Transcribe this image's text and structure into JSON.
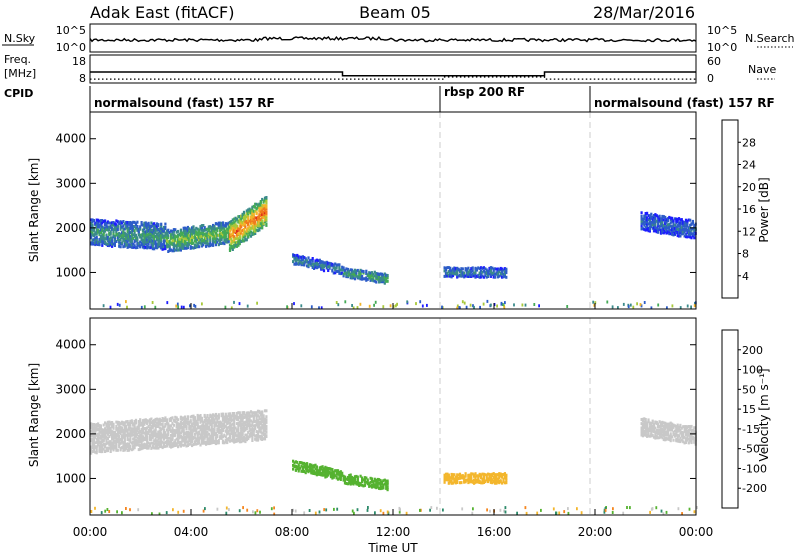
{
  "header": {
    "station": "Adak East (fitACF)",
    "beam": "Beam 05",
    "date": "28/Mar/2016"
  },
  "panels": {
    "nsky_label": "N.Sky",
    "nsky_ticks": [
      "10^5",
      "10^0"
    ],
    "nsearch_label": "N.Search",
    "nsearch_ticks": [
      "10^5",
      "10^0"
    ],
    "freq_label_1": "Freq.",
    "freq_label_2": "[MHz]",
    "freq_ticks": [
      "18",
      "8"
    ],
    "nave_label": "Nave",
    "nave_ticks": [
      "60",
      "0"
    ],
    "cpid_label": "CPID",
    "cpid_segments": [
      {
        "label": "normalsound (fast) 157 RF"
      },
      {
        "label": "rbsp 200 RF"
      },
      {
        "label": "normalsound (fast) 157 RF"
      }
    ]
  },
  "x_axis": {
    "label": "Time UT",
    "ticks": [
      "00:00",
      "04:00",
      "08:00",
      "12:00",
      "16:00",
      "20:00",
      "00:00"
    ]
  },
  "power_panel": {
    "ylabel": "Slant Range [km]",
    "yticks": [
      "1000",
      "2000",
      "3000",
      "4000"
    ],
    "colorbar_label": "Power [dB]",
    "colorbar_ticks": [
      "4",
      "8",
      "12",
      "16",
      "20",
      "24",
      "28"
    ],
    "colorbar_colors": [
      "#1c1cff",
      "#2c5cc8",
      "#3a8a8a",
      "#44aa55",
      "#a8c83a",
      "#f2b52a",
      "#f07a1e",
      "#e02a1a"
    ]
  },
  "velocity_panel": {
    "ylabel": "Slant Range [km]",
    "yticks": [
      "1000",
      "2000",
      "3000",
      "4000"
    ],
    "colorbar_label": "Velocity [m s⁻¹]",
    "colorbar_ticks": [
      "-200",
      "-100",
      "-50",
      "-15",
      "15",
      "50",
      "100",
      "200"
    ],
    "colorbar_colors": [
      "#e8101a",
      "#f04a1a",
      "#f5861e",
      "#f3b62c",
      "#c8c8c8",
      "#55b230",
      "#2c8a6a",
      "#2a5ab8",
      "#1a2aa0"
    ]
  },
  "chart_data": [
    {
      "type": "line",
      "title": "Frequency",
      "ylabel": "Freq. [MHz]",
      "ylim": [
        8,
        18
      ],
      "xlim": [
        0,
        24
      ],
      "x": [
        0,
        10,
        10,
        18,
        18,
        24
      ],
      "values": [
        12.0,
        12.0,
        10.5,
        10.5,
        12.0,
        12.0
      ]
    },
    {
      "type": "line",
      "title": "Nave",
      "ylabel": "Nave",
      "ylim": [
        0,
        60
      ],
      "xlim": [
        0,
        24
      ],
      "x": [
        0,
        14,
        14,
        18,
        18,
        24
      ],
      "values": [
        7,
        7,
        12,
        12,
        7,
        7
      ]
    },
    {
      "type": "heatmap",
      "title": "Power",
      "xlabel": "Time UT",
      "ylabel": "Slant Range [km]",
      "xlim": [
        0,
        24
      ],
      "ylim": [
        180,
        4600
      ],
      "colorbar": {
        "label": "Power [dB]",
        "range": [
          0,
          32
        ]
      },
      "regions": [
        {
          "t0": 0.0,
          "t1": 3.0,
          "r_center": [
            1900,
            1800
          ],
          "r_halfwidth": 260,
          "power": 8
        },
        {
          "t0": 3.0,
          "t1": 5.5,
          "r_center": [
            1700,
            1900
          ],
          "r_halfwidth": 220,
          "power": 11
        },
        {
          "t0": 5.5,
          "t1": 7.0,
          "r_center": [
            1800,
            2400
          ],
          "r_halfwidth": 300,
          "power": 18
        },
        {
          "t0": 8.0,
          "t1": 10.0,
          "r_center": [
            1300,
            1050
          ],
          "r_halfwidth": 90,
          "power": 6
        },
        {
          "t0": 10.0,
          "t1": 11.8,
          "r_center": [
            1000,
            850
          ],
          "r_halfwidth": 110,
          "power": 9
        },
        {
          "t0": 14.0,
          "t1": 16.5,
          "r_center": [
            1000,
            1000
          ],
          "r_halfwidth": 70,
          "power": 6
        },
        {
          "t0": 21.8,
          "t1": 24.0,
          "r_center": [
            2150,
            1950
          ],
          "r_halfwidth": 160,
          "power": 5
        }
      ]
    },
    {
      "type": "heatmap",
      "title": "Velocity",
      "xlabel": "Time UT",
      "ylabel": "Slant Range [km]",
      "xlim": [
        0,
        24
      ],
      "ylim": [
        180,
        4600
      ],
      "colorbar": {
        "label": "Velocity [m s⁻¹]",
        "range": [
          -200,
          200
        ]
      },
      "regions": [
        {
          "t0": 0.0,
          "t1": 7.0,
          "r_center": [
            1900,
            2200
          ],
          "r_halfwidth": 320,
          "velocity": 0
        },
        {
          "t0": 8.0,
          "t1": 10.0,
          "r_center": [
            1300,
            1050
          ],
          "r_halfwidth": 90,
          "velocity": 30
        },
        {
          "t0": 10.0,
          "t1": 11.8,
          "r_center": [
            1000,
            850
          ],
          "r_halfwidth": 110,
          "velocity": 30
        },
        {
          "t0": 14.0,
          "t1": 16.5,
          "r_center": [
            1000,
            1000
          ],
          "r_halfwidth": 70,
          "velocity": -30
        },
        {
          "t0": 21.8,
          "t1": 24.0,
          "r_center": [
            2150,
            1950
          ],
          "r_halfwidth": 160,
          "velocity": 0
        }
      ]
    }
  ]
}
